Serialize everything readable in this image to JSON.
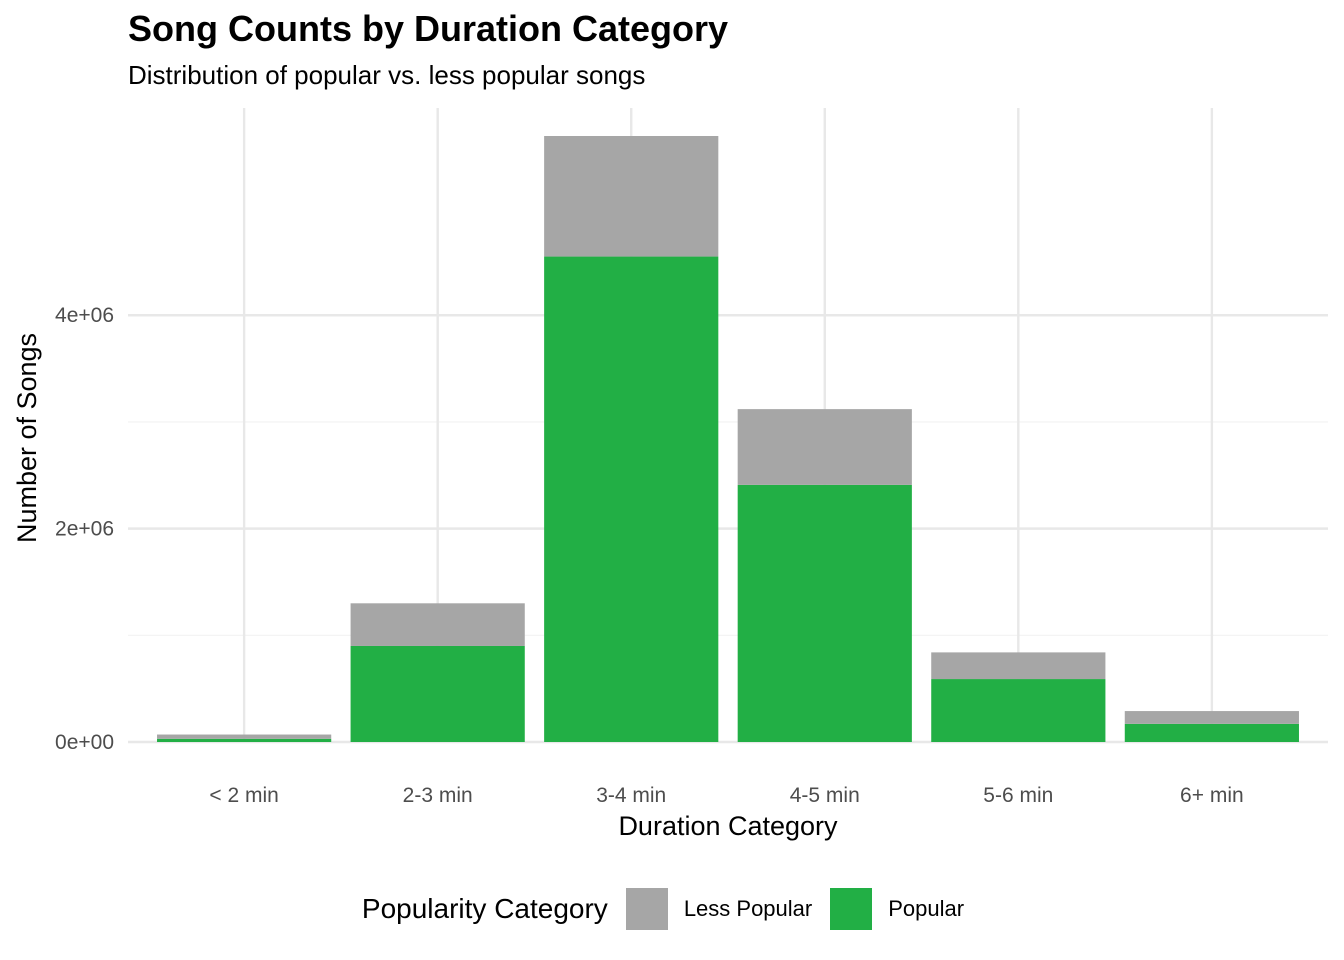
{
  "chart_data": {
    "type": "bar",
    "stacked": true,
    "title": "Song Counts by Duration Category",
    "subtitle": "Distribution of popular vs. less popular songs",
    "xlabel": "Duration Category",
    "ylabel": "Number of Songs",
    "categories": [
      "< 2 min",
      "2-3 min",
      "3-4 min",
      "4-5 min",
      "5-6 min",
      "6+ min"
    ],
    "series": [
      {
        "name": "Popular",
        "color": "#22AF45",
        "values": [
          30000,
          900000,
          4550000,
          2410000,
          590000,
          170000
        ]
      },
      {
        "name": "Less Popular",
        "color": "#A6A6A6",
        "values": [
          40000,
          400000,
          1130000,
          710000,
          250000,
          120000
        ]
      }
    ],
    "ylim": [
      0,
      5680000
    ],
    "yticks": [
      0,
      2000000,
      4000000
    ],
    "ytick_labels": [
      "0e+00",
      "2e+06",
      "4e+06"
    ],
    "grid": true,
    "legend": {
      "title": "Popularity Category",
      "position": "bottom",
      "items": [
        {
          "label": "Less Popular",
          "color": "#A6A6A6"
        },
        {
          "label": "Popular",
          "color": "#22AF45"
        }
      ]
    }
  }
}
